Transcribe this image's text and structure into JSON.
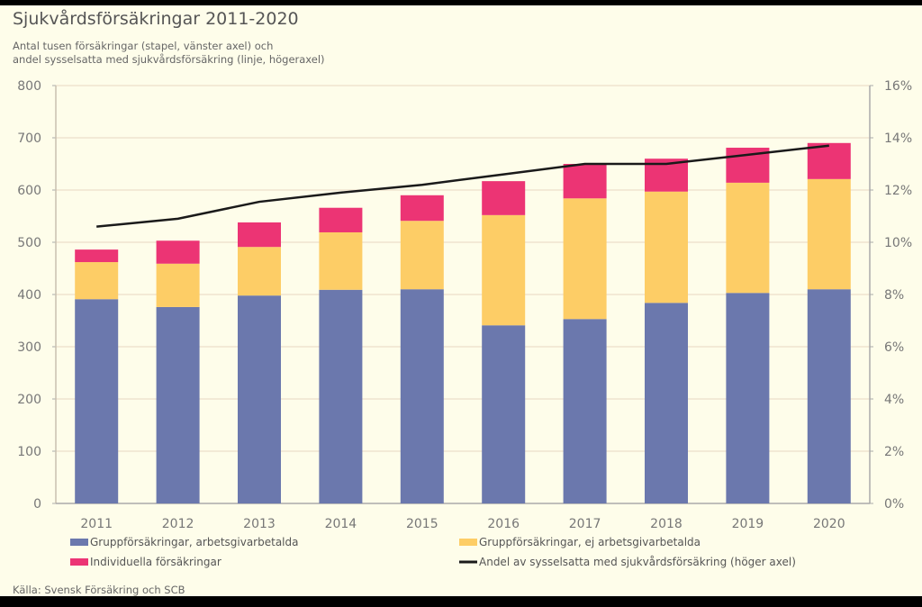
{
  "chart_data": {
    "type": "bar",
    "stacked": true,
    "title": "Sjukvårdsförsäkringar 2011-2020",
    "subtitle_lines": [
      "Antal tusen försäkringar (stapel, vänster axel) och",
      "andel sysselsatta med sjukvårdsförsäkring (linje, högeraxel)"
    ],
    "source": "Källa: Svensk Försäkring och SCB",
    "categories": [
      "2011",
      "2012",
      "2013",
      "2014",
      "2015",
      "2016",
      "2017",
      "2018",
      "2019",
      "2020"
    ],
    "y_left": {
      "min": 0,
      "max": 800,
      "ticks": [
        0,
        100,
        200,
        300,
        400,
        500,
        600,
        700,
        800
      ],
      "tick_labels": [
        "0",
        "100",
        "200",
        "300",
        "400",
        "500",
        "600",
        "700",
        "800"
      ]
    },
    "y_right": {
      "min": 0,
      "max": 16,
      "ticks": [
        0,
        2,
        4,
        6,
        8,
        10,
        12,
        14,
        16
      ],
      "tick_labels": [
        "0%",
        "2%",
        "4%",
        "6%",
        "8%",
        "10%",
        "12%",
        "14%",
        "16%"
      ]
    },
    "grid": true,
    "legend_position": "bottom",
    "series": [
      {
        "name": "Gruppförsäkringar, arbetsgivarbetalda",
        "type": "bar",
        "axis": "left",
        "color": "#6b78ad",
        "values": [
          391,
          376,
          398,
          409,
          410,
          341,
          353,
          384,
          403,
          410
        ]
      },
      {
        "name": "Gruppförsäkringar, ej arbetsgivarbetalda",
        "type": "bar",
        "axis": "left",
        "color": "#fdcd66",
        "values": [
          71,
          83,
          93,
          110,
          131,
          211,
          231,
          213,
          211,
          211
        ]
      },
      {
        "name": "Individuella försäkringar",
        "type": "bar",
        "axis": "left",
        "color": "#ec3474",
        "values": [
          24,
          44,
          47,
          47,
          49,
          65,
          66,
          63,
          67,
          69
        ]
      },
      {
        "name": "Andel av sysselsatta med sjukvårdsförsäkring (höger axel)",
        "type": "line",
        "axis": "right",
        "color": "#1a1a1a",
        "values": [
          10.6,
          10.9,
          11.55,
          11.9,
          12.2,
          12.6,
          13.0,
          13.0,
          13.35,
          13.7
        ]
      }
    ]
  }
}
